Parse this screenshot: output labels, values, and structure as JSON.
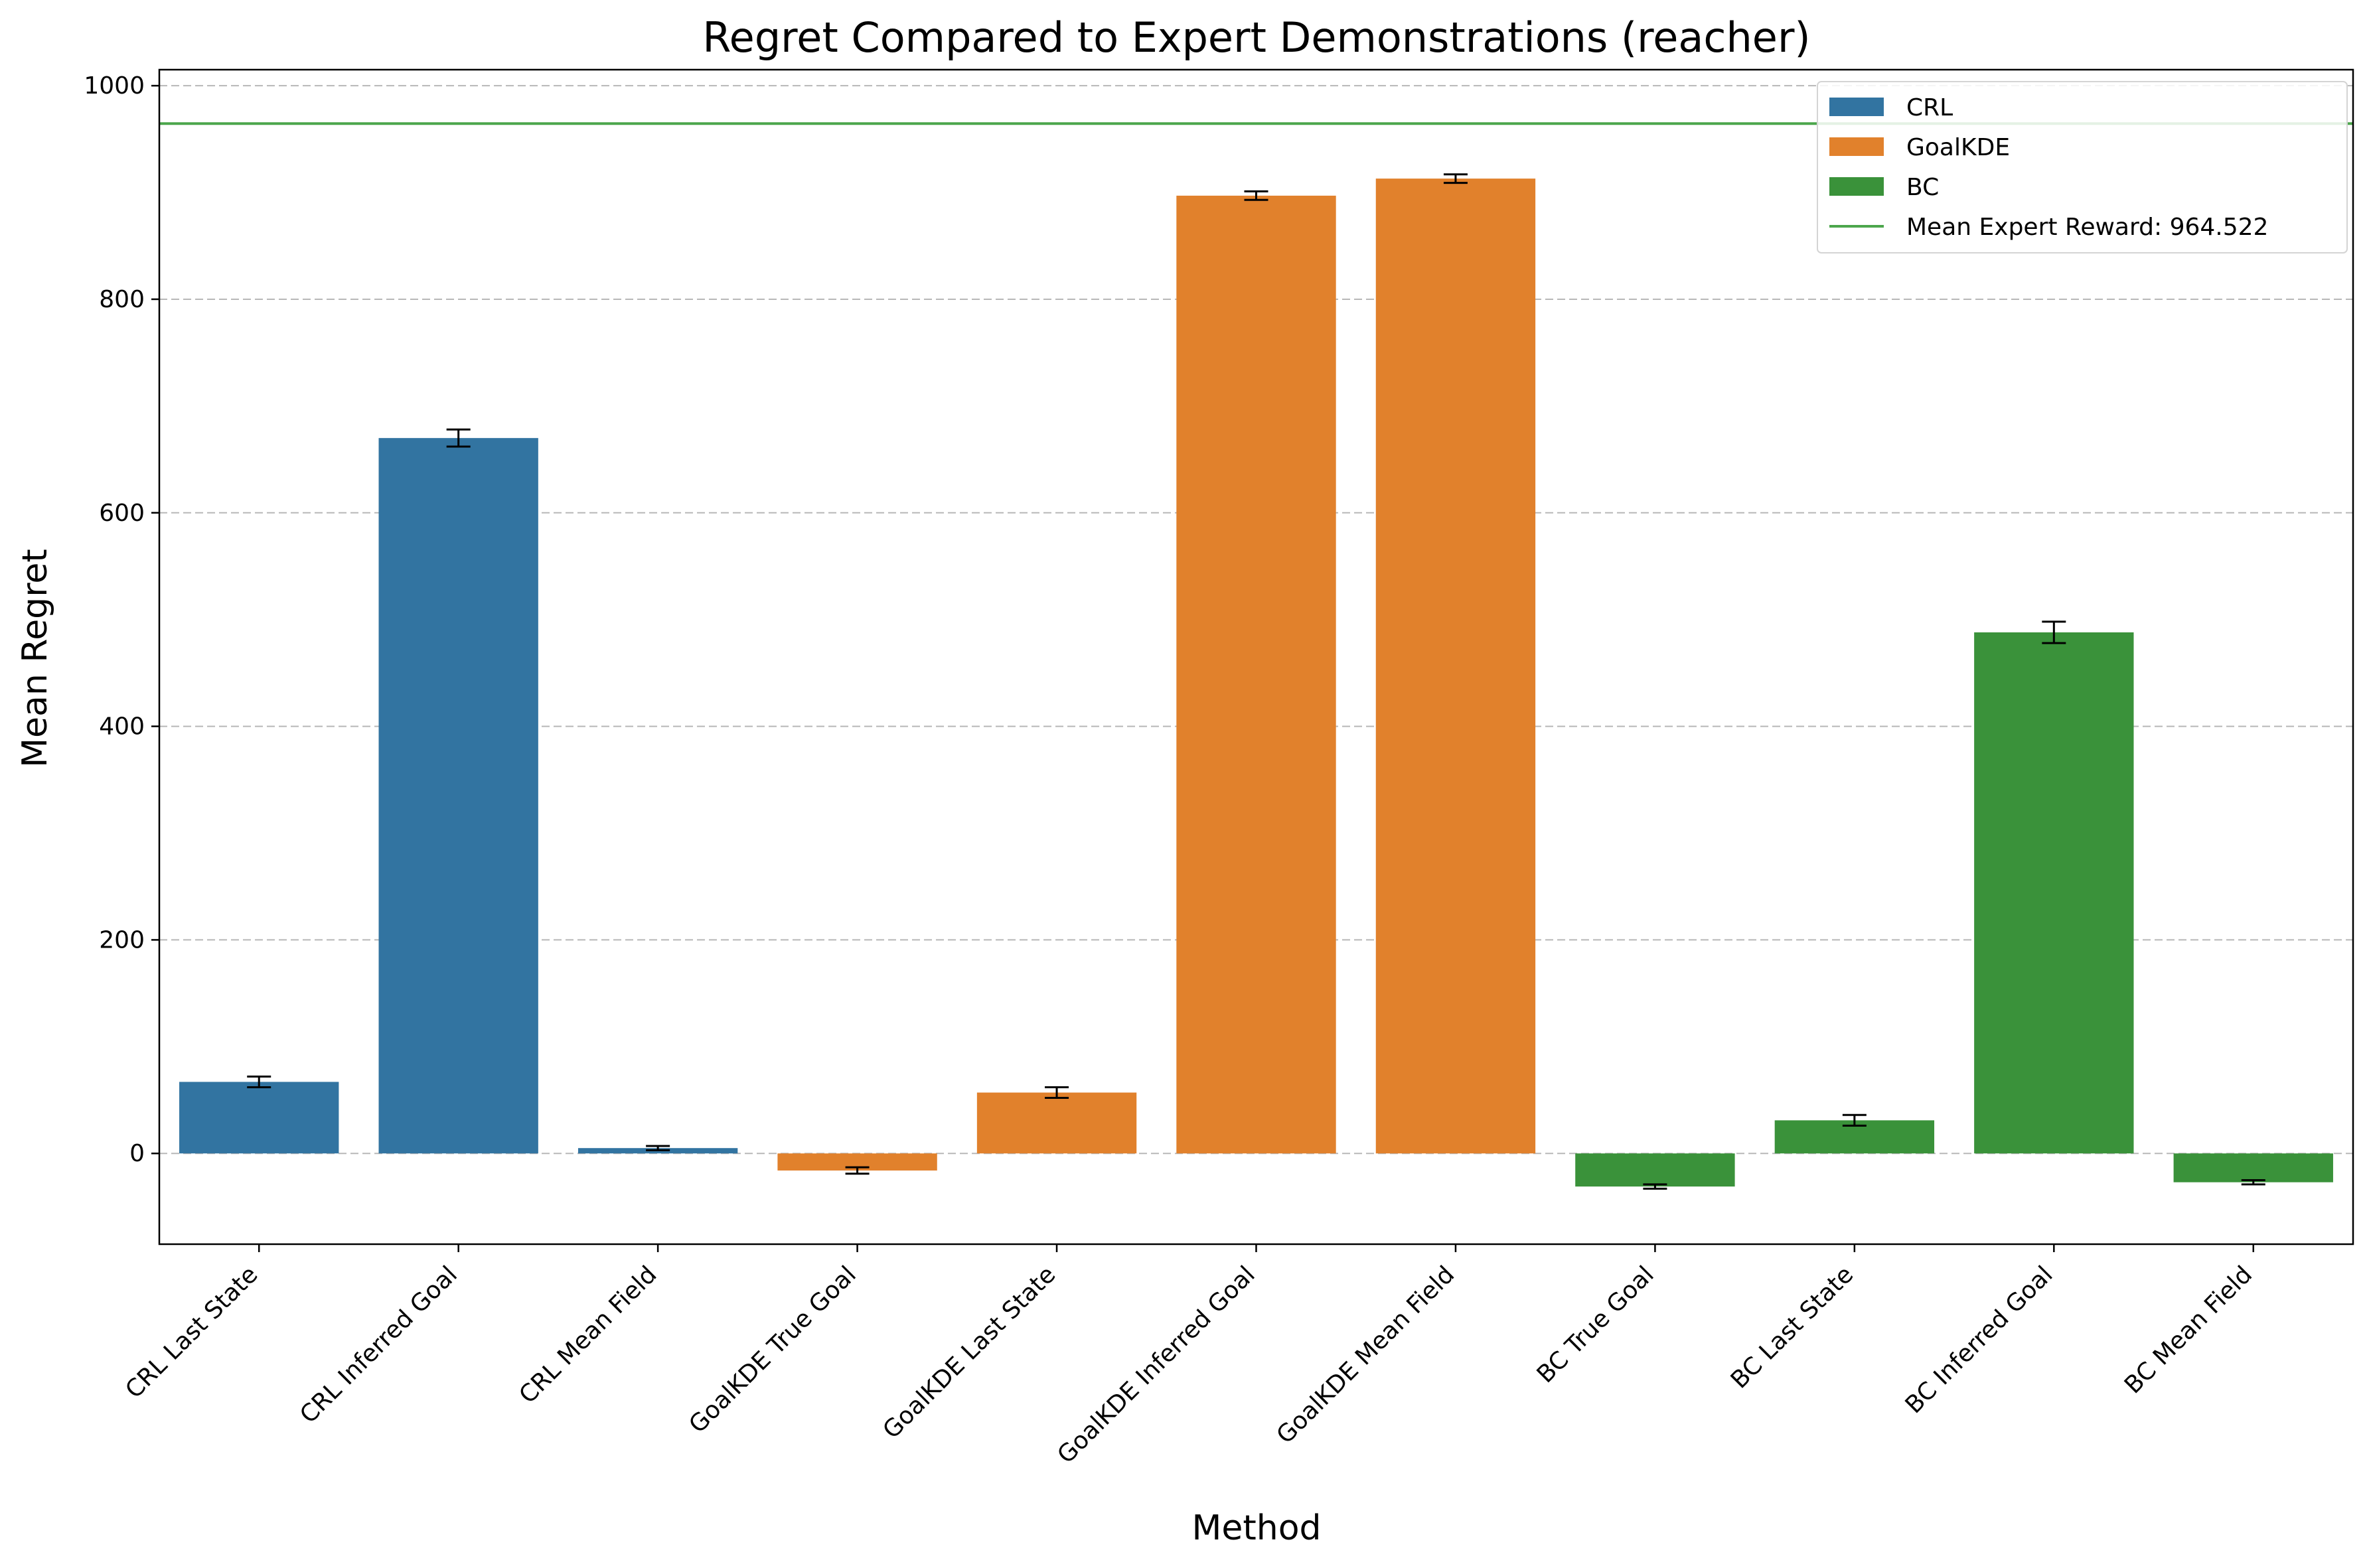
{
  "chart_data": {
    "type": "bar",
    "title": "Regret Compared to Expert Demonstrations (reacher)",
    "xlabel": "Method",
    "ylabel": "Mean Regret",
    "ylim": [
      -85,
      1015
    ],
    "yticks": [
      0,
      200,
      400,
      600,
      800,
      1000
    ],
    "grid": "y-dashed",
    "legend_position": "top-right",
    "categories": [
      "CRL Last State",
      "CRL Inferred Goal",
      "CRL Mean Field",
      "GoalKDE True Goal",
      "GoalKDE Last State",
      "GoalKDE Inferred Goal",
      "GoalKDE Mean Field",
      "BC True Goal",
      "BC Last State",
      "BC Inferred Goal",
      "BC Mean Field"
    ],
    "values": [
      67,
      670,
      5,
      -16,
      57,
      897,
      913,
      -31,
      31,
      488,
      -27
    ],
    "errors": [
      5,
      8,
      2,
      3,
      5,
      4,
      4,
      2,
      5,
      10,
      2
    ],
    "groups": [
      "CRL",
      "CRL",
      "CRL",
      "GoalKDE",
      "GoalKDE",
      "GoalKDE",
      "GoalKDE",
      "BC",
      "BC",
      "BC",
      "BC"
    ],
    "series": [
      {
        "name": "CRL",
        "color": "#3274a1"
      },
      {
        "name": "GoalKDE",
        "color": "#e1812c"
      },
      {
        "name": "BC",
        "color": "#3a923a"
      }
    ],
    "reference_line": {
      "label": "Mean Expert Reward: 964.522",
      "value": 964.522,
      "color": "#4ca64c"
    }
  }
}
